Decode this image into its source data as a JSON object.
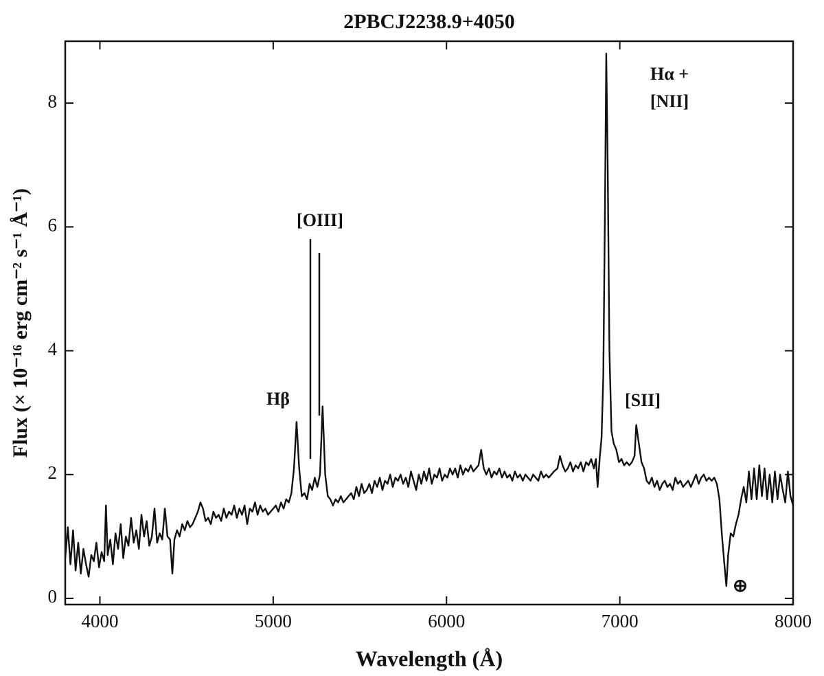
{
  "chart_data": {
    "type": "line",
    "title": "2PBCJ2238.9+4050",
    "x_label": "Wavelength (Å)",
    "y_label": "Flux (× 10⁻¹⁶ erg cm⁻² s⁻¹ Å⁻¹)",
    "color": "#111111",
    "xlim": [
      3800,
      8000
    ],
    "xticks": [
      4000,
      5000,
      6000,
      7000,
      8000
    ],
    "ylim": [
      -0.1,
      9
    ],
    "yticks": [
      0,
      2,
      4,
      6,
      8
    ],
    "annotations": [
      "Hβ",
      "[OIII]",
      "Hα +",
      "[NII]",
      "[SII]",
      "⊕"
    ],
    "x": [
      3800,
      3815,
      3830,
      3845,
      3860,
      3875,
      3890,
      3905,
      3920,
      3935,
      3950,
      3965,
      3980,
      3995,
      4010,
      4025,
      4035,
      4045,
      4060,
      4075,
      4090,
      4105,
      4120,
      4135,
      4150,
      4165,
      4180,
      4195,
      4210,
      4225,
      4240,
      4255,
      4270,
      4285,
      4300,
      4315,
      4330,
      4345,
      4360,
      4375,
      4390,
      4405,
      4418,
      4430,
      4445,
      4460,
      4475,
      4490,
      4505,
      4520,
      4535,
      4550,
      4565,
      4580,
      4595,
      4610,
      4625,
      4640,
      4655,
      4670,
      4685,
      4700,
      4715,
      4730,
      4745,
      4760,
      4775,
      4790,
      4805,
      4820,
      4835,
      4850,
      4865,
      4880,
      4895,
      4910,
      4925,
      4940,
      4955,
      4970,
      4985,
      5000,
      5015,
      5030,
      5045,
      5060,
      5075,
      5090,
      5105,
      5120,
      5135,
      5150,
      5165,
      5180,
      5195,
      5210,
      5225,
      5240,
      5255,
      5270,
      5285,
      5300,
      5315,
      5330,
      5345,
      5360,
      5375,
      5390,
      5405,
      5420,
      5435,
      5450,
      5465,
      5480,
      5495,
      5510,
      5525,
      5540,
      5555,
      5570,
      5585,
      5600,
      5615,
      5630,
      5645,
      5660,
      5675,
      5690,
      5705,
      5720,
      5735,
      5750,
      5765,
      5780,
      5795,
      5810,
      5825,
      5840,
      5855,
      5870,
      5885,
      5900,
      5915,
      5930,
      5945,
      5960,
      5975,
      5990,
      6005,
      6020,
      6035,
      6050,
      6065,
      6080,
      6095,
      6110,
      6125,
      6140,
      6155,
      6170,
      6185,
      6200,
      6215,
      6230,
      6245,
      6260,
      6275,
      6290,
      6305,
      6320,
      6335,
      6350,
      6365,
      6380,
      6395,
      6410,
      6425,
      6440,
      6455,
      6470,
      6485,
      6500,
      6515,
      6530,
      6545,
      6560,
      6575,
      6590,
      6605,
      6620,
      6640,
      6655,
      6670,
      6685,
      6700,
      6715,
      6730,
      6745,
      6760,
      6775,
      6790,
      6805,
      6820,
      6835,
      6850,
      6862,
      6872,
      6885,
      6895,
      6905,
      6915,
      6922,
      6930,
      6940,
      6952,
      6965,
      6980,
      6995,
      7010,
      7025,
      7040,
      7055,
      7070,
      7085,
      7095,
      7110,
      7125,
      7140,
      7155,
      7170,
      7185,
      7200,
      7215,
      7230,
      7245,
      7260,
      7275,
      7290,
      7305,
      7320,
      7335,
      7350,
      7365,
      7380,
      7395,
      7410,
      7425,
      7440,
      7455,
      7470,
      7485,
      7500,
      7515,
      7530,
      7545,
      7560,
      7575,
      7590,
      7605,
      7615,
      7625,
      7640,
      7655,
      7670,
      7685,
      7700,
      7715,
      7730,
      7745,
      7760,
      7775,
      7790,
      7805,
      7820,
      7835,
      7850,
      7865,
      7880,
      7895,
      7910,
      7925,
      7940,
      7955,
      7970,
      7985,
      8000
    ],
    "values": [
      0.65,
      1.15,
      0.55,
      1.1,
      0.45,
      0.9,
      0.4,
      0.8,
      0.55,
      0.35,
      0.7,
      0.6,
      0.9,
      0.5,
      0.75,
      0.6,
      1.5,
      0.7,
      0.95,
      0.55,
      1.05,
      0.8,
      1.2,
      0.65,
      1.0,
      0.85,
      1.3,
      0.9,
      1.1,
      0.8,
      1.35,
      1.0,
      1.25,
      0.85,
      1.0,
      1.45,
      0.9,
      1.05,
      0.95,
      1.45,
      1.0,
      0.95,
      0.4,
      0.95,
      1.1,
      1.0,
      1.2,
      1.1,
      1.25,
      1.15,
      1.2,
      1.3,
      1.4,
      1.55,
      1.45,
      1.25,
      1.3,
      1.2,
      1.4,
      1.3,
      1.35,
      1.25,
      1.45,
      1.3,
      1.4,
      1.35,
      1.5,
      1.3,
      1.45,
      1.35,
      1.5,
      1.2,
      1.45,
      1.4,
      1.55,
      1.35,
      1.5,
      1.4,
      1.45,
      1.35,
      1.4,
      1.45,
      1.5,
      1.4,
      1.55,
      1.45,
      1.6,
      1.55,
      1.7,
      2.1,
      2.85,
      2.1,
      1.65,
      1.7,
      1.6,
      1.85,
      1.75,
      1.95,
      1.8,
      2.0,
      3.1,
      2.0,
      1.65,
      1.6,
      1.5,
      1.6,
      1.55,
      1.65,
      1.55,
      1.6,
      1.65,
      1.7,
      1.6,
      1.8,
      1.65,
      1.85,
      1.7,
      1.75,
      1.85,
      1.7,
      1.9,
      1.8,
      1.95,
      1.75,
      1.9,
      1.85,
      2.0,
      1.8,
      1.95,
      1.9,
      2.0,
      1.85,
      1.95,
      1.8,
      2.05,
      1.9,
      1.75,
      2.0,
      1.85,
      2.05,
      1.9,
      2.1,
      1.85,
      2.0,
      1.95,
      2.1,
      1.9,
      2.0,
      1.95,
      2.1,
      2.0,
      2.1,
      1.95,
      2.15,
      2.0,
      2.1,
      2.05,
      2.15,
      2.05,
      2.1,
      2.15,
      2.4,
      2.1,
      2.0,
      2.1,
      1.95,
      2.05,
      2.0,
      2.1,
      1.95,
      2.05,
      1.95,
      2.0,
      1.9,
      2.05,
      1.95,
      2.0,
      1.9,
      2.0,
      1.95,
      1.9,
      2.0,
      1.95,
      1.9,
      2.05,
      1.95,
      2.0,
      1.95,
      2.0,
      2.05,
      2.1,
      2.3,
      2.15,
      2.05,
      2.1,
      2.2,
      2.05,
      2.15,
      2.1,
      2.2,
      2.05,
      2.2,
      2.15,
      2.25,
      2.1,
      2.25,
      1.8,
      2.3,
      2.6,
      3.6,
      6.5,
      8.8,
      7.0,
      4.0,
      2.7,
      2.5,
      2.4,
      2.2,
      2.25,
      2.15,
      2.2,
      2.15,
      2.2,
      2.3,
      2.8,
      2.5,
      2.2,
      2.1,
      1.9,
      1.85,
      1.95,
      1.8,
      1.9,
      1.75,
      1.85,
      1.9,
      1.8,
      1.85,
      1.75,
      1.95,
      1.85,
      1.9,
      1.8,
      1.85,
      1.9,
      1.8,
      1.9,
      2.0,
      1.85,
      1.95,
      2.0,
      1.9,
      1.95,
      1.9,
      1.95,
      1.85,
      1.6,
      1.0,
      0.5,
      0.2,
      0.7,
      1.05,
      1.0,
      1.2,
      1.35,
      1.6,
      1.8,
      1.55,
      2.05,
      1.6,
      2.1,
      1.6,
      2.15,
      1.65,
      2.1,
      1.6,
      2.0,
      1.55,
      2.05,
      1.6,
      2.0,
      1.75,
      1.55,
      2.05,
      1.65,
      1.5
    ]
  }
}
